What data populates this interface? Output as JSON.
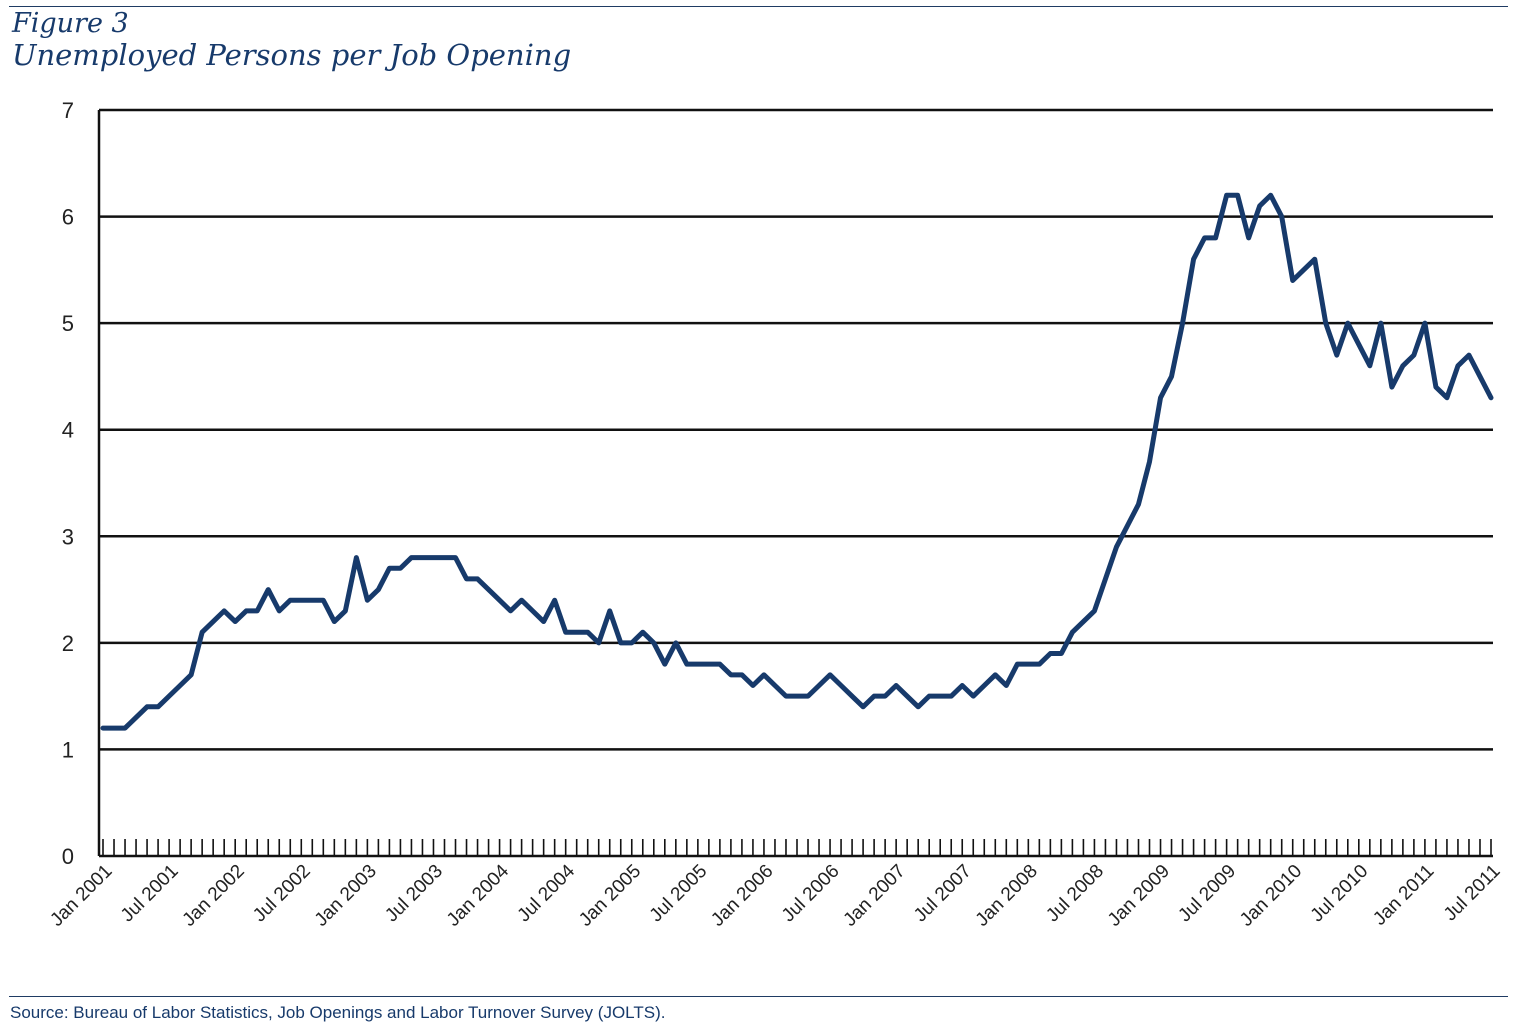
{
  "figure": {
    "label": "Figure 3",
    "title": "Unemployed Persons per Job Opening",
    "source": "Source: Bureau of Labor Statistics, Job Openings and Labor Turnover Survey (JOLTS)."
  },
  "chart_data": {
    "type": "line",
    "title": "Unemployed Persons per Job Opening",
    "xlabel": "",
    "ylabel": "",
    "ylim": [
      0,
      7
    ],
    "yticks": [
      0,
      1,
      2,
      3,
      4,
      5,
      6,
      7
    ],
    "grid": "horizontal",
    "legend": "none",
    "line_color": "#173a6b",
    "x_tick_labels": [
      "Jan 2001",
      "Jul 2001",
      "Jan 2002",
      "Jul 2002",
      "Jan 2003",
      "Jul 2003",
      "Jan 2004",
      "Jul 2004",
      "Jan 2005",
      "Jul 2005",
      "Jan 2006",
      "Jul 2006",
      "Jan 2007",
      "Jul 2007",
      "Jan 2008",
      "Jul 2008",
      "Jan 2009",
      "Jul 2009",
      "Jan 2010",
      "Jul 2010",
      "Jan 2011",
      "Jul 2011"
    ],
    "x_start": "Jan 2001",
    "x_end": "Sep 2011",
    "values": [
      1.2,
      1.2,
      1.2,
      1.3,
      1.4,
      1.4,
      1.5,
      1.6,
      1.7,
      2.1,
      2.2,
      2.3,
      2.2,
      2.3,
      2.3,
      2.5,
      2.3,
      2.4,
      2.4,
      2.4,
      2.4,
      2.2,
      2.3,
      2.8,
      2.4,
      2.5,
      2.7,
      2.7,
      2.8,
      2.8,
      2.8,
      2.8,
      2.8,
      2.6,
      2.6,
      2.5,
      2.4,
      2.3,
      2.4,
      2.3,
      2.2,
      2.4,
      2.1,
      2.1,
      2.1,
      2.0,
      2.3,
      2.0,
      2.0,
      2.1,
      2.0,
      1.8,
      2.0,
      1.8,
      1.8,
      1.8,
      1.8,
      1.7,
      1.7,
      1.6,
      1.7,
      1.6,
      1.5,
      1.5,
      1.5,
      1.6,
      1.7,
      1.6,
      1.5,
      1.4,
      1.5,
      1.5,
      1.6,
      1.5,
      1.4,
      1.5,
      1.5,
      1.5,
      1.6,
      1.5,
      1.6,
      1.7,
      1.6,
      1.8,
      1.8,
      1.8,
      1.9,
      1.9,
      2.1,
      2.2,
      2.3,
      2.6,
      2.9,
      3.1,
      3.3,
      3.7,
      4.3,
      4.5,
      5.0,
      5.6,
      5.8,
      5.8,
      6.2,
      6.2,
      5.8,
      6.1,
      6.2,
      6.0,
      5.4,
      5.5,
      5.6,
      5.0,
      4.7,
      5.0,
      4.8,
      4.6,
      5.0,
      4.4,
      4.6,
      4.7,
      5.0,
      4.4,
      4.3,
      4.6,
      4.7,
      4.5,
      4.3
    ]
  }
}
